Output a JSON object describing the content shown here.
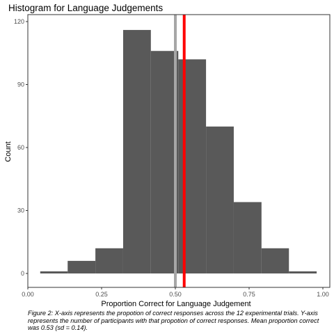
{
  "chart_data": {
    "type": "bar",
    "title": "Histogram for Language Judgements",
    "xlabel": "Proportion Correct for Language Judgement",
    "ylabel": "Count",
    "xlim": [
      0.0,
      1.0
    ],
    "ylim": [
      0,
      120
    ],
    "xticks": [
      {
        "value": 0.0,
        "label": "0.00"
      },
      {
        "value": 0.25,
        "label": "0.25"
      },
      {
        "value": 0.5,
        "label": "0.50"
      },
      {
        "value": 0.75,
        "label": "0.75"
      },
      {
        "value": 1.0,
        "label": "1.00"
      }
    ],
    "yticks": [
      {
        "value": 0,
        "label": "0"
      },
      {
        "value": 30,
        "label": "30"
      },
      {
        "value": 60,
        "label": "60"
      },
      {
        "value": 90,
        "label": "90"
      },
      {
        "value": 120,
        "label": "120"
      }
    ],
    "bins": [
      {
        "start": 0.042,
        "end": 0.135,
        "count": 1
      },
      {
        "start": 0.135,
        "end": 0.229,
        "count": 6
      },
      {
        "start": 0.229,
        "end": 0.323,
        "count": 12
      },
      {
        "start": 0.323,
        "end": 0.417,
        "count": 116
      },
      {
        "start": 0.417,
        "end": 0.51,
        "count": 106
      },
      {
        "start": 0.51,
        "end": 0.604,
        "count": 102
      },
      {
        "start": 0.604,
        "end": 0.698,
        "count": 70
      },
      {
        "start": 0.698,
        "end": 0.792,
        "count": 34
      },
      {
        "start": 0.792,
        "end": 0.885,
        "count": 12
      },
      {
        "start": 0.885,
        "end": 0.979,
        "count": 1
      }
    ],
    "vlines": [
      {
        "x": 0.5,
        "color": "#a6a6a6"
      },
      {
        "x": 0.53,
        "color": "#ff0000"
      }
    ],
    "bar_color": "#595959",
    "grid": false
  },
  "caption": "Figure 2: X-axis represents the propotion of correct responses across the 12 experimental trials. Y-axis represents the number of participants with that propotion of correct responses. Mean proportion correct was 0.53 (sd = 0.14)."
}
